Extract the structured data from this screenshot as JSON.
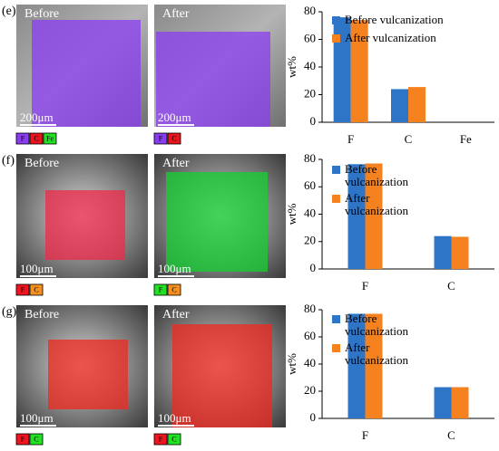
{
  "chart_data": [
    {
      "type": "bar",
      "ylabel": "wt%",
      "categories": [
        "F",
        "C",
        "Fe"
      ],
      "series": [
        {
          "name": "Before vulcanization",
          "color": "#2e75c8",
          "values": [
            76,
            24,
            0
          ]
        },
        {
          "name": "After vulcanization",
          "color": "#f5821f",
          "values": [
            74,
            25.5,
            0
          ]
        }
      ],
      "ylim": [
        0,
        80
      ],
      "yticks": [
        0,
        20,
        40,
        60,
        80
      ]
    },
    {
      "type": "bar",
      "ylabel": "wt%",
      "categories": [
        "F",
        "C"
      ],
      "series": [
        {
          "name": "Before vulcanization",
          "color": "#2e75c8",
          "values": [
            76.5,
            24
          ]
        },
        {
          "name": "After vulcanization",
          "color": "#f5821f",
          "values": [
            77,
            23.5
          ]
        }
      ],
      "ylim": [
        0,
        80
      ],
      "yticks": [
        0,
        20,
        40,
        60,
        80
      ]
    },
    {
      "type": "bar",
      "ylabel": "wt%",
      "categories": [
        "F",
        "C"
      ],
      "series": [
        {
          "name": "Before vulcanization",
          "color": "#2e75c8",
          "values": [
            77,
            23
          ]
        },
        {
          "name": "After vulcanization",
          "color": "#f5821f",
          "values": [
            77,
            23
          ]
        }
      ],
      "ylim": [
        0,
        80
      ],
      "yticks": [
        0,
        20,
        40,
        60,
        80
      ]
    }
  ],
  "panels": [
    {
      "label": "(e)",
      "images": [
        {
          "label": "Before",
          "scale": "200μm",
          "overlay": "#8a3cf0",
          "elements": [
            {
              "symbol": "F",
              "color": "#8a3cf0"
            },
            {
              "symbol": "C",
              "color": "#e8141e"
            },
            {
              "symbol": "Fe",
              "color": "#22e022"
            }
          ]
        },
        {
          "label": "After",
          "scale": "200μm",
          "overlay": "#8a3cf0",
          "elements": [
            {
              "symbol": "F",
              "color": "#8a3cf0"
            },
            {
              "symbol": "C",
              "color": "#e8141e"
            }
          ]
        }
      ]
    },
    {
      "label": "(f)",
      "images": [
        {
          "label": "Before",
          "scale": "100μm",
          "overlay": "#f0284a",
          "elements": [
            {
              "symbol": "F",
              "color": "#f0141e"
            },
            {
              "symbol": "C",
              "color": "#f59020"
            }
          ]
        },
        {
          "label": "After",
          "scale": "100μm",
          "overlay": "#14d032",
          "elements": [
            {
              "symbol": "F",
              "color": "#22e022"
            },
            {
              "symbol": "C",
              "color": "#f59020"
            }
          ]
        }
      ]
    },
    {
      "label": "(g)",
      "images": [
        {
          "label": "Before",
          "scale": "100μm",
          "overlay": "#f0281e",
          "elements": [
            {
              "symbol": "F",
              "color": "#f0141e"
            },
            {
              "symbol": "C",
              "color": "#22e022"
            }
          ]
        },
        {
          "label": "After",
          "scale": "100μm",
          "overlay": "#f0281e",
          "elements": [
            {
              "symbol": "F",
              "color": "#f0141e"
            },
            {
              "symbol": "C",
              "color": "#22e022"
            }
          ]
        }
      ]
    }
  ]
}
